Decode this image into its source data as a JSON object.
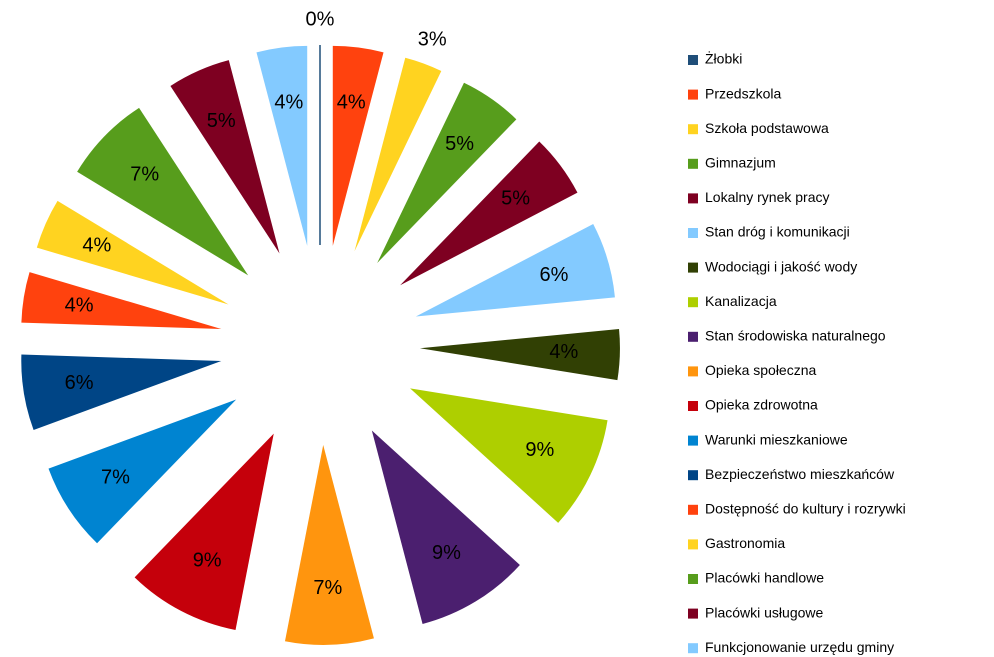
{
  "chart_data": {
    "type": "pie",
    "categories": [
      "Żłobki",
      "Przedszkola",
      "Szkoła podstawowa",
      "Gimnazjum",
      "Lokalny rynek pracy",
      "Stan dróg i komunikacji",
      "Wodociągi i jakość wody",
      "Kanalizacja",
      "Stan środowiska naturalnego",
      "Opieka społeczna",
      "Opieka zdrowotna",
      "Warunki mieszkaniowe",
      "Bezpieczeństwo  mieszkańców",
      "Dostępność do kultury i rozrywki",
      "Gastronomia",
      "Placówki handlowe",
      "Placówki usługowe",
      "Funkcjonowanie urzędu gminy"
    ],
    "values": [
      0,
      4,
      3,
      5,
      5,
      6,
      4,
      9,
      9,
      7,
      9,
      7,
      6,
      4,
      4,
      7,
      5,
      4
    ],
    "value_labels": [
      "0%",
      "4%",
      "3%",
      "5%",
      "5%",
      "6%",
      "4%",
      "9%",
      "9%",
      "7%",
      "9%",
      "7%",
      "6%",
      "4%",
      "4%",
      "7%",
      "5%",
      "4%"
    ],
    "colors": [
      "#1f4e79",
      "#ff420e",
      "#ffd320",
      "#579d1c",
      "#7e0021",
      "#83caff",
      "#314004",
      "#aecf00",
      "#4b1f6f",
      "#ff950e",
      "#c5000b",
      "#0084d1",
      "#004586",
      "#ff420e",
      "#ffd320",
      "#579d1c",
      "#7e0021",
      "#83caff"
    ],
    "legend": "right"
  }
}
